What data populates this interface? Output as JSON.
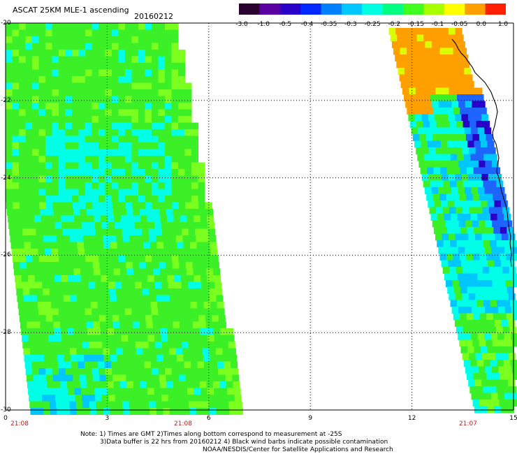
{
  "header": {
    "title": "ASCAT 25KM MLE-1 ascending",
    "date": "20160212"
  },
  "colorbar": {
    "labels": [
      "-3.0",
      "-1.0",
      "-0.5",
      "-0.4",
      "-0.35",
      "-0.3",
      "-0.25",
      "-0.2",
      "-0.15",
      "-0.1",
      "-0.05",
      "0.0",
      "1.0"
    ],
    "colors": [
      "#2a0030",
      "#5a00a0",
      "#2a00c8",
      "#0028ff",
      "#0080ff",
      "#00c8ff",
      "#00ffe0",
      "#00ff80",
      "#40ff20",
      "#a8ff00",
      "#ffff00",
      "#ffa000",
      "#ff2000"
    ]
  },
  "map": {
    "y_ticks": [
      "-20",
      "-22",
      "-24",
      "-26",
      "-28",
      "-30"
    ],
    "x_ticks": [
      "0",
      "3",
      "6",
      "9",
      "12",
      "15"
    ],
    "pass_times": [
      "21:08",
      "21:08",
      "21:07"
    ],
    "colors": {
      "green": "#3cf028",
      "lime": "#7aff1e",
      "cyan": "#00ffe6",
      "aqua": "#00c8ff",
      "blue": "#1e64ff",
      "darkblue": "#2800c8",
      "yellow": "#dcff00",
      "orange": "#ffa000",
      "coastline": "#000000"
    }
  },
  "footer": {
    "line1": "Note: 1) Times are GMT 2)Times along bottom correspond to measurement at -25S",
    "line2": "3)Data buffer is 22 hrs from 20160212 4) Black wind barbs indicate possible contamination",
    "line3": "NOAA/NESDIS/Center for Satellite Applications and Research"
  }
}
